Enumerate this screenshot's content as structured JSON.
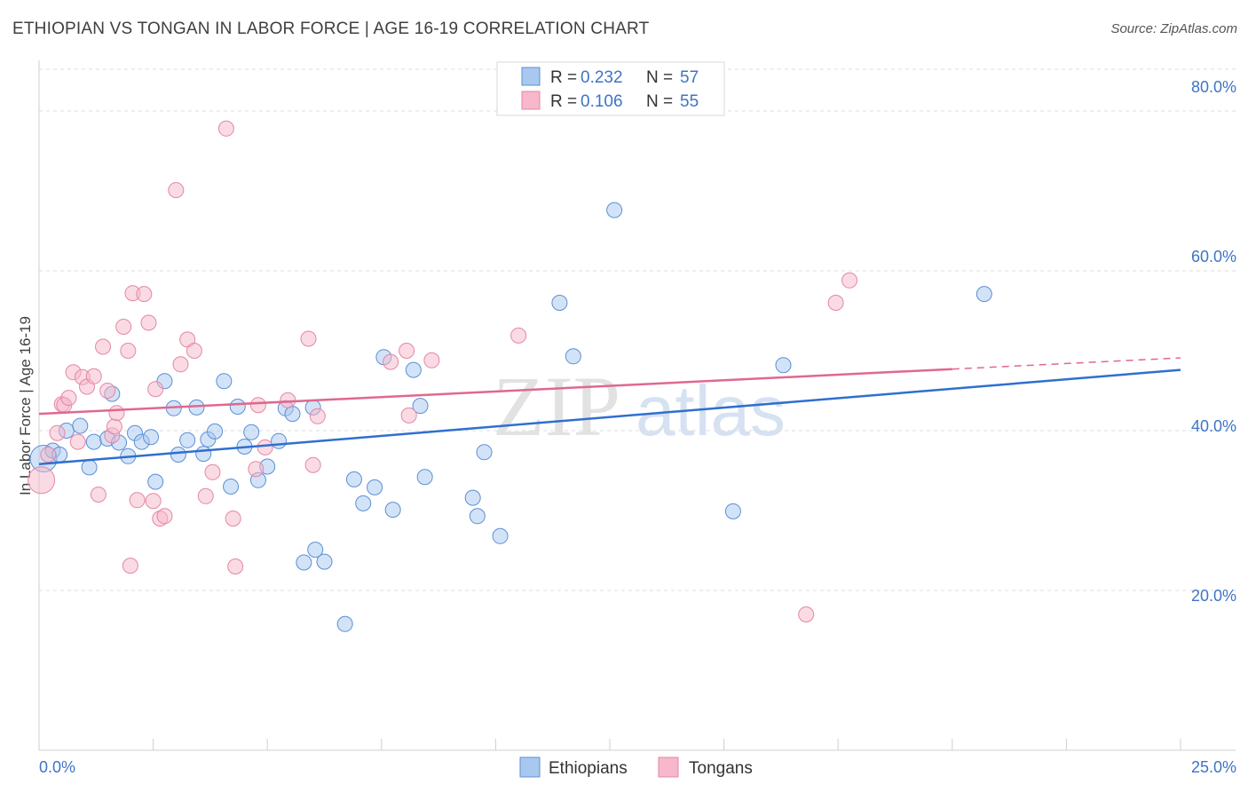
{
  "header": {
    "title": "ETHIOPIAN VS TONGAN IN LABOR FORCE | AGE 16-19 CORRELATION CHART",
    "source": "Source: ZipAtlas.com"
  },
  "watermark": {
    "zip": "ZIP",
    "atlas": "atlas"
  },
  "colors": {
    "ethiopians_fill": "#a8c8f0",
    "ethiopians_stroke": "#5b8fd6",
    "ethiopians_line": "#2f6fcf",
    "tongans_fill": "#f6b8ca",
    "tongans_stroke": "#e586a5",
    "tongans_line": "#e0688e",
    "grid": "#dedede",
    "axis_text": "#3d74c6"
  },
  "chart_data": {
    "type": "scatter",
    "title": "ETHIOPIAN VS TONGAN IN LABOR FORCE | AGE 16-19 CORRELATION CHART",
    "xlabel": "",
    "ylabel": "In Labor Force | Age 16-19",
    "xlim": [
      0,
      25
    ],
    "ylim": [
      0,
      85
    ],
    "x_tick_labels": [
      "0.0%",
      "25.0%"
    ],
    "y_ticks": [
      20,
      40,
      60,
      80
    ],
    "y_tick_labels": [
      "20.0%",
      "40.0%",
      "60.0%",
      "80.0%"
    ],
    "grid": true,
    "legend_position": "top-center",
    "legend": [
      {
        "series": "Ethiopians",
        "r_label": "R = ",
        "r_value": "0.232",
        "n_label": "N = ",
        "n_value": "57"
      },
      {
        "series": "Tongans",
        "r_label": "R = ",
        "r_value": "0.106",
        "n_label": "N = ",
        "n_value": "55"
      }
    ],
    "series": [
      {
        "name": "Ethiopians",
        "trend": {
          "x": [
            0,
            25
          ],
          "y": [
            35.8,
            47.6
          ],
          "dashed_from": null
        },
        "points": [
          {
            "x": 0.1,
            "y": 36.5,
            "big": true
          },
          {
            "x": 0.3,
            "y": 37.5
          },
          {
            "x": 0.45,
            "y": 37.0
          },
          {
            "x": 0.6,
            "y": 40.0
          },
          {
            "x": 0.9,
            "y": 40.6
          },
          {
            "x": 1.1,
            "y": 35.4
          },
          {
            "x": 1.2,
            "y": 38.6
          },
          {
            "x": 1.5,
            "y": 39.0
          },
          {
            "x": 1.6,
            "y": 44.6
          },
          {
            "x": 1.75,
            "y": 38.5
          },
          {
            "x": 1.95,
            "y": 36.8
          },
          {
            "x": 2.1,
            "y": 39.7
          },
          {
            "x": 2.25,
            "y": 38.6
          },
          {
            "x": 2.45,
            "y": 39.2
          },
          {
            "x": 2.55,
            "y": 33.6
          },
          {
            "x": 2.75,
            "y": 46.2
          },
          {
            "x": 2.95,
            "y": 42.8
          },
          {
            "x": 3.05,
            "y": 37.0
          },
          {
            "x": 3.25,
            "y": 38.8
          },
          {
            "x": 3.45,
            "y": 42.9
          },
          {
            "x": 3.6,
            "y": 37.1
          },
          {
            "x": 3.7,
            "y": 38.9
          },
          {
            "x": 3.85,
            "y": 39.9
          },
          {
            "x": 4.05,
            "y": 46.2
          },
          {
            "x": 4.2,
            "y": 33.0
          },
          {
            "x": 4.35,
            "y": 43.0
          },
          {
            "x": 4.5,
            "y": 38.0
          },
          {
            "x": 4.65,
            "y": 39.8
          },
          {
            "x": 4.8,
            "y": 33.8
          },
          {
            "x": 5.0,
            "y": 35.5
          },
          {
            "x": 5.25,
            "y": 38.7
          },
          {
            "x": 5.4,
            "y": 42.8
          },
          {
            "x": 5.55,
            "y": 42.1
          },
          {
            "x": 6.0,
            "y": 42.9
          },
          {
            "x": 6.05,
            "y": 25.1
          },
          {
            "x": 5.8,
            "y": 23.5
          },
          {
            "x": 6.25,
            "y": 23.6
          },
          {
            "x": 6.7,
            "y": 15.8
          },
          {
            "x": 6.9,
            "y": 33.9
          },
          {
            "x": 7.1,
            "y": 30.9
          },
          {
            "x": 7.35,
            "y": 32.9
          },
          {
            "x": 7.55,
            "y": 49.2
          },
          {
            "x": 7.75,
            "y": 30.1
          },
          {
            "x": 8.2,
            "y": 47.6
          },
          {
            "x": 8.35,
            "y": 43.1
          },
          {
            "x": 8.45,
            "y": 34.2
          },
          {
            "x": 9.5,
            "y": 31.6
          },
          {
            "x": 9.6,
            "y": 29.3
          },
          {
            "x": 9.75,
            "y": 37.3
          },
          {
            "x": 10.1,
            "y": 26.8
          },
          {
            "x": 11.4,
            "y": 56.0
          },
          {
            "x": 11.7,
            "y": 49.3
          },
          {
            "x": 12.6,
            "y": 67.6
          },
          {
            "x": 15.2,
            "y": 29.9
          },
          {
            "x": 16.3,
            "y": 48.2
          },
          {
            "x": 20.7,
            "y": 57.1
          }
        ]
      },
      {
        "name": "Tongans",
        "trend": {
          "x": [
            0,
            25
          ],
          "y": [
            42.1,
            49.1
          ],
          "dashed_from": 20.0
        },
        "points": [
          {
            "x": 0.05,
            "y": 33.8,
            "big": true
          },
          {
            "x": 0.2,
            "y": 37.0
          },
          {
            "x": 0.4,
            "y": 39.7
          },
          {
            "x": 0.5,
            "y": 43.3
          },
          {
            "x": 0.55,
            "y": 43.2
          },
          {
            "x": 0.65,
            "y": 44.1
          },
          {
            "x": 0.75,
            "y": 47.3
          },
          {
            "x": 0.85,
            "y": 38.6
          },
          {
            "x": 0.95,
            "y": 46.7
          },
          {
            "x": 1.05,
            "y": 45.5
          },
          {
            "x": 1.2,
            "y": 46.8
          },
          {
            "x": 1.3,
            "y": 32.0
          },
          {
            "x": 1.4,
            "y": 50.5
          },
          {
            "x": 1.5,
            "y": 45.0
          },
          {
            "x": 1.6,
            "y": 39.4
          },
          {
            "x": 1.65,
            "y": 40.5
          },
          {
            "x": 1.7,
            "y": 42.2
          },
          {
            "x": 1.85,
            "y": 53.0
          },
          {
            "x": 1.95,
            "y": 50.0
          },
          {
            "x": 2.0,
            "y": 23.1
          },
          {
            "x": 2.05,
            "y": 57.2
          },
          {
            "x": 2.15,
            "y": 31.3
          },
          {
            "x": 2.3,
            "y": 57.1
          },
          {
            "x": 2.4,
            "y": 53.5
          },
          {
            "x": 2.5,
            "y": 31.2
          },
          {
            "x": 2.55,
            "y": 45.2
          },
          {
            "x": 2.65,
            "y": 29.0
          },
          {
            "x": 2.75,
            "y": 29.3
          },
          {
            "x": 3.0,
            "y": 70.1
          },
          {
            "x": 3.1,
            "y": 48.3
          },
          {
            "x": 3.25,
            "y": 51.4
          },
          {
            "x": 3.4,
            "y": 50.0
          },
          {
            "x": 3.65,
            "y": 31.8
          },
          {
            "x": 3.8,
            "y": 34.8
          },
          {
            "x": 4.1,
            "y": 77.8
          },
          {
            "x": 4.25,
            "y": 29.0
          },
          {
            "x": 4.3,
            "y": 23.0
          },
          {
            "x": 4.75,
            "y": 35.2
          },
          {
            "x": 4.8,
            "y": 43.2
          },
          {
            "x": 4.95,
            "y": 37.9
          },
          {
            "x": 5.45,
            "y": 43.8
          },
          {
            "x": 5.9,
            "y": 51.5
          },
          {
            "x": 6.0,
            "y": 35.7
          },
          {
            "x": 6.1,
            "y": 41.8
          },
          {
            "x": 7.7,
            "y": 48.6
          },
          {
            "x": 8.05,
            "y": 50.0
          },
          {
            "x": 8.1,
            "y": 41.9
          },
          {
            "x": 8.6,
            "y": 48.8
          },
          {
            "x": 10.5,
            "y": 51.9
          },
          {
            "x": 16.8,
            "y": 17.0
          },
          {
            "x": 17.45,
            "y": 56.0
          },
          {
            "x": 17.75,
            "y": 58.8
          }
        ]
      }
    ]
  }
}
